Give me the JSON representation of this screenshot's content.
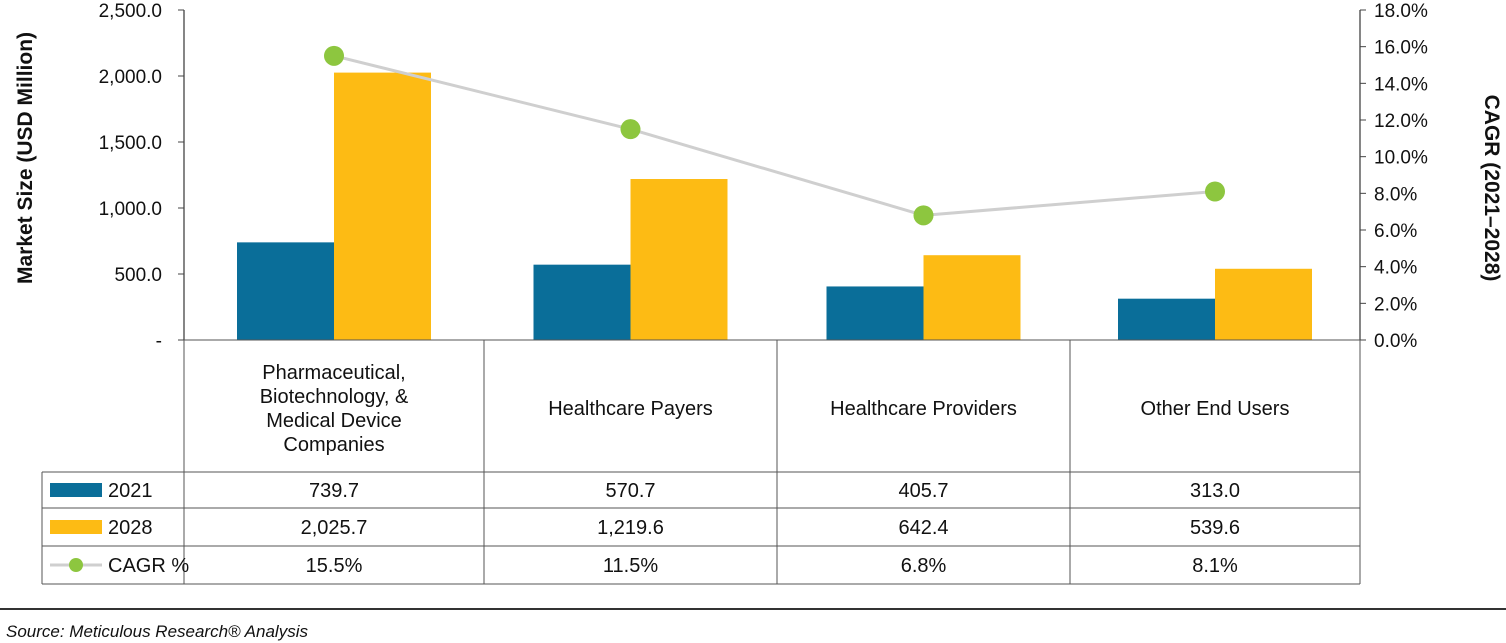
{
  "chart_data": {
    "type": "bar",
    "categories": [
      [
        "Pharmaceutical,",
        "Biotechnology, &",
        "Medical Device",
        "Companies"
      ],
      [
        "Healthcare Payers"
      ],
      [
        "Healthcare Providers"
      ],
      [
        "Other End Users"
      ]
    ],
    "series": [
      {
        "name": "2021",
        "color": "#0A6E99",
        "values": [
          739.7,
          570.7,
          405.7,
          313.0
        ],
        "labels": [
          "739.7",
          "570.7",
          "405.7",
          "313.0"
        ]
      },
      {
        "name": "2028",
        "color": "#FDBB14",
        "values": [
          2025.7,
          1219.6,
          642.4,
          539.6
        ],
        "labels": [
          "2,025.7",
          "1,219.6",
          "642.4",
          "539.6"
        ]
      }
    ],
    "line_series": {
      "name": "CAGR %",
      "color": "#8DC63F",
      "line_color": "#CFCFCF",
      "axis": "right",
      "values": [
        15.5,
        11.5,
        6.8,
        8.1
      ],
      "labels": [
        "15.5%",
        "11.5%",
        "6.8%",
        "8.1%"
      ]
    },
    "ylabel": "Market Size (USD Million)",
    "ylim": [
      0,
      2500
    ],
    "yticks": [
      0,
      500,
      1000,
      1500,
      2000,
      2500
    ],
    "ytick_labels": [
      "-",
      "500.0",
      "1,000.0",
      "1,500.0",
      "2,000.0",
      "2,500.0"
    ],
    "y2label": "CAGR (2021–2028)",
    "y2lim": [
      0,
      18
    ],
    "y2ticks": [
      0,
      2,
      4,
      6,
      8,
      10,
      12,
      14,
      16,
      18
    ],
    "y2tick_labels": [
      "0.0%",
      "2.0%",
      "4.0%",
      "6.0%",
      "8.0%",
      "10.0%",
      "12.0%",
      "14.0%",
      "16.0%",
      "18.0%"
    ],
    "grid": false,
    "legend": "data-table"
  },
  "source": "Source: Meticulous Research® Analysis"
}
